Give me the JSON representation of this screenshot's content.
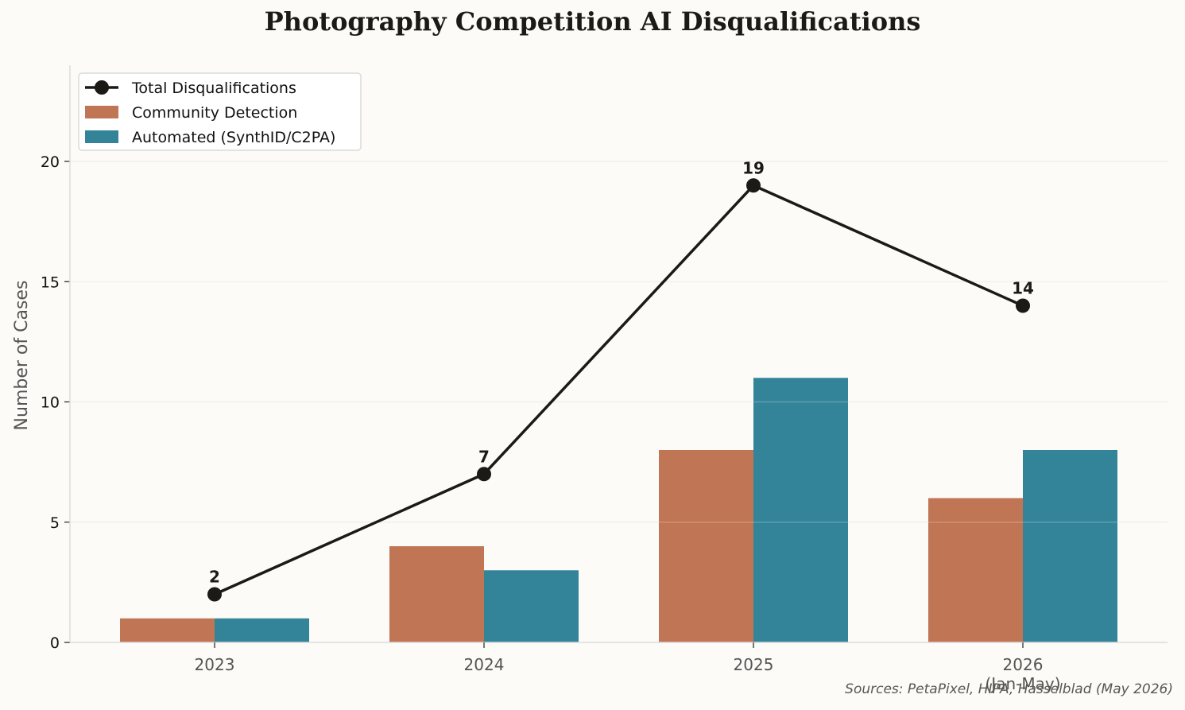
{
  "title": "Photography Competition AI Disqualifications",
  "source_note": "Sources: PetaPixel, HIPA, Hasselblad (May 2026)",
  "colors": {
    "community": "#c07555",
    "automated": "#338499",
    "line": "#1c1a17",
    "grid": "#eeece8",
    "axis": "#dddddd"
  },
  "chart_data": {
    "type": "bar",
    "categories": [
      "2023",
      "2024",
      "2025",
      "2026\n(Jan-May)"
    ],
    "ylabel": "Number of Cases",
    "ylim": [
      0,
      24
    ],
    "yticks": [
      0,
      5,
      10,
      15,
      20
    ],
    "grid": true,
    "legend_position": "top-left",
    "series": [
      {
        "name": "Community Detection",
        "type": "bar",
        "values": [
          1,
          4,
          8,
          6
        ]
      },
      {
        "name": "Automated (SynthID/C2PA)",
        "type": "bar",
        "values": [
          1,
          3,
          11,
          8
        ]
      },
      {
        "name": "Total Disqualifications",
        "type": "line",
        "values": [
          2,
          7,
          19,
          14
        ],
        "data_labels": [
          "2",
          "7",
          "19",
          "14"
        ]
      }
    ]
  }
}
